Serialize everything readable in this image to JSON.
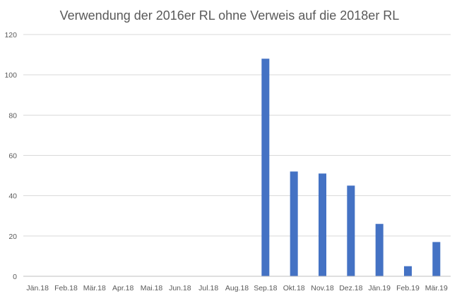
{
  "chart_data": {
    "type": "bar",
    "title": "Verwendung der 2016er RL ohne Verweis auf die 2018er RL",
    "xlabel": "",
    "ylabel": "",
    "categories": [
      "Jän.18",
      "Feb.18",
      "Mär.18",
      "Apr.18",
      "Mai.18",
      "Jun.18",
      "Jul.18",
      "Aug.18",
      "Sep.18",
      "Okt.18",
      "Nov.18",
      "Dez.18",
      "Jän.19",
      "Feb.19",
      "Mär.19"
    ],
    "values": [
      0,
      0,
      0,
      0,
      0,
      0,
      0,
      0,
      108,
      52,
      51,
      45,
      26,
      5,
      17
    ],
    "ylim": [
      0,
      120
    ],
    "yticks": [
      "0",
      "20",
      "40",
      "60",
      "80",
      "100",
      "120"
    ],
    "grid": true,
    "legend": "none",
    "bar_color": "#4472C4",
    "grid_color": "#D9D9D9",
    "axis_color": "#BFBFBF"
  }
}
